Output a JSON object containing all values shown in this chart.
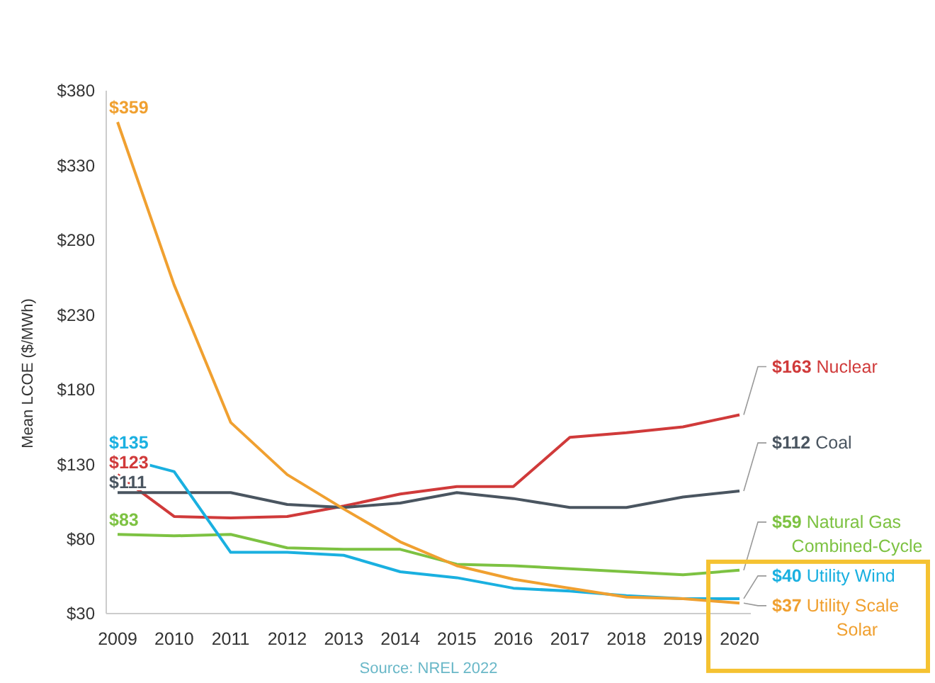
{
  "chart_data": {
    "type": "line",
    "ylabel": "Mean LCOE ($/MWh)",
    "categories": [
      "2009",
      "2010",
      "2011",
      "2012",
      "2013",
      "2014",
      "2015",
      "2016",
      "2017",
      "2018",
      "2019",
      "2020"
    ],
    "ylim": [
      30,
      380
    ],
    "yticks": [
      {
        "value": 30,
        "label": "$30"
      },
      {
        "value": 80,
        "label": "$80"
      },
      {
        "value": 130,
        "label": "$130"
      },
      {
        "value": 180,
        "label": "$180"
      },
      {
        "value": 230,
        "label": "$230"
      },
      {
        "value": 280,
        "label": "$280"
      },
      {
        "value": 330,
        "label": "$330"
      },
      {
        "value": 380,
        "label": "$380"
      }
    ],
    "grid": false,
    "marker": "none",
    "line_style": "solid",
    "series": [
      {
        "name": "Nuclear",
        "color": "#d03a3a",
        "values": [
          123,
          95,
          94,
          95,
          102,
          110,
          115,
          115,
          148,
          151,
          155,
          163
        ],
        "value_labels": [
          "$123",
          null,
          null,
          null,
          null,
          null,
          null,
          null,
          null,
          null,
          null,
          "$163"
        ]
      },
      {
        "name": "Coal",
        "color": "#4a5560",
        "values": [
          111,
          111,
          111,
          103,
          101,
          104,
          111,
          107,
          101,
          101,
          108,
          112
        ],
        "value_labels": [
          "$111",
          null,
          null,
          null,
          null,
          null,
          null,
          null,
          null,
          null,
          null,
          "$112"
        ]
      },
      {
        "name": "Natural Gas Combined-Cycle",
        "color": "#7dc242",
        "values": [
          83,
          82,
          83,
          74,
          73,
          73,
          63,
          62,
          60,
          58,
          56,
          59
        ],
        "value_labels": [
          "$83",
          null,
          null,
          null,
          null,
          null,
          null,
          null,
          null,
          null,
          null,
          "$59"
        ]
      },
      {
        "name": "Utility Wind",
        "color": "#1ab0e0",
        "values": [
          135,
          125,
          71,
          71,
          69,
          58,
          54,
          47,
          45,
          42,
          40,
          40
        ],
        "value_labels": [
          "$135",
          null,
          null,
          null,
          null,
          null,
          null,
          null,
          null,
          null,
          null,
          "$40"
        ]
      },
      {
        "name": "Utility Scale Solar",
        "color": "#f0a030",
        "values": [
          359,
          250,
          158,
          123,
          100,
          78,
          62,
          53,
          47,
          41,
          40,
          37
        ],
        "value_labels": [
          "$359",
          null,
          null,
          null,
          null,
          null,
          null,
          null,
          null,
          null,
          null,
          "$37"
        ]
      }
    ],
    "annotations": [
      "Source: NREL 2022"
    ]
  }
}
